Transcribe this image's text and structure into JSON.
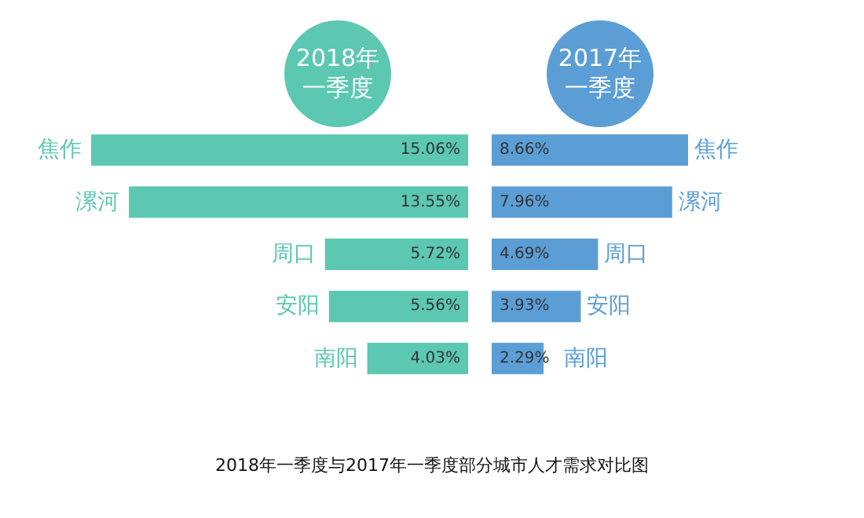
{
  "chart_data": [
    {
      "type": "bar",
      "orientation": "horizontal",
      "title": "2018年一季度",
      "categories": [
        "焦作",
        "漯河",
        "周口",
        "安阳",
        "南阳"
      ],
      "values": [
        15.06,
        13.55,
        5.72,
        5.56,
        4.03
      ],
      "value_labels": [
        "15.06%",
        "13.55%",
        "5.72%",
        "5.56%",
        "4.03%"
      ],
      "color": "#5cc8b1",
      "annotations": [
        "2018年一季度与2017年一季度部分城市人才需求对比图"
      ]
    },
    {
      "type": "bar",
      "orientation": "horizontal",
      "title": "2017年一季度",
      "categories": [
        "焦作",
        "漯河",
        "周口",
        "安阳",
        "南阳"
      ],
      "values": [
        8.66,
        7.96,
        4.69,
        3.93,
        2.29
      ],
      "value_labels": [
        "8.66%",
        "7.96%",
        "4.69%",
        "3.93%",
        "2.29%"
      ],
      "color": "#5b9ed6"
    }
  ]
}
